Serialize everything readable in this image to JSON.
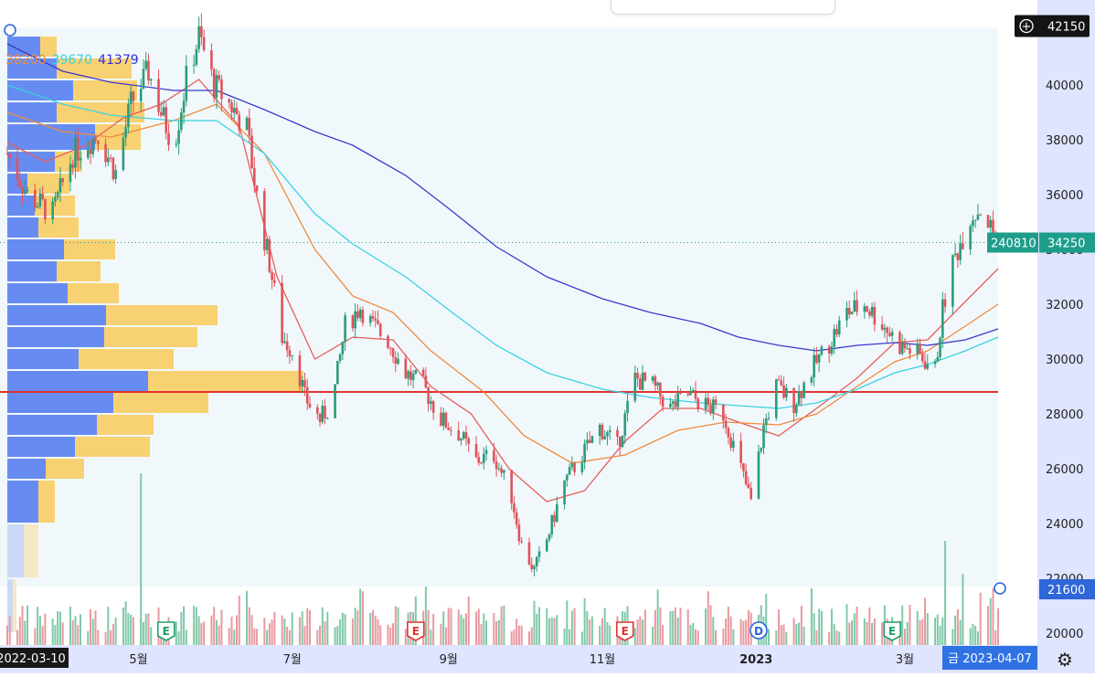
{
  "chart_data": {
    "type": "candlestick",
    "x_start": "2022-03-10",
    "x_end": "2023-04-07",
    "ylim": [
      19500,
      43000
    ],
    "y_ticks": [
      20000,
      22000,
      24000,
      26000,
      28000,
      30000,
      32000,
      34000,
      36000,
      38000,
      40000
    ],
    "y_tick_labels": [
      "20000",
      "22000",
      "24000",
      "26000",
      "28000",
      "30000",
      "32000",
      "34000",
      "36000",
      "38000",
      "40000"
    ],
    "x_tick_labels": [
      {
        "date": "2022-05-01",
        "label": "5월"
      },
      {
        "date": "2022-07-01",
        "label": "7월"
      },
      {
        "date": "2022-09-01",
        "label": "9월"
      },
      {
        "date": "2022-11-01",
        "label": "11월"
      },
      {
        "date": "2023-01-01",
        "label": "2023"
      },
      {
        "date": "2023-03-01",
        "label": "3월"
      }
    ],
    "x_start_label": "2022-03-10",
    "x_end_label": "금 2023-04-07",
    "ma_labels": [
      {
        "value": "38200",
        "color": "#f08a3c"
      },
      {
        "value": "39670",
        "color": "#38d3e0"
      },
      {
        "value": "41379",
        "color": "#2f2fd8"
      }
    ],
    "price_markers": [
      {
        "label": "42150",
        "price": 42150,
        "style": "dark"
      },
      {
        "label": "34250",
        "volume_label": "240810",
        "price": 34250,
        "style": "green"
      },
      {
        "label": "21600",
        "price": 21600,
        "style": "blue"
      }
    ],
    "horizontal_line": {
      "price": 28800,
      "color": "#e0322f"
    },
    "dotted_line": {
      "price": 34250
    },
    "last_price": 34250,
    "series": [
      {
        "name": "MA short",
        "color": "#e85d5d",
        "points": [
          [
            "2022-03-10",
            37900
          ],
          [
            "2022-03-25",
            37200
          ],
          [
            "2022-04-10",
            37800
          ],
          [
            "2022-04-25",
            38800
          ],
          [
            "2022-05-10",
            39300
          ],
          [
            "2022-05-25",
            40200
          ],
          [
            "2022-06-10",
            38500
          ],
          [
            "2022-06-25",
            33000
          ],
          [
            "2022-07-10",
            30000
          ],
          [
            "2022-07-25",
            30800
          ],
          [
            "2022-08-10",
            30700
          ],
          [
            "2022-08-25",
            29000
          ],
          [
            "2022-09-10",
            28000
          ],
          [
            "2022-09-25",
            26000
          ],
          [
            "2022-10-10",
            24800
          ],
          [
            "2022-10-25",
            25200
          ],
          [
            "2022-11-10",
            27000
          ],
          [
            "2022-11-25",
            28200
          ],
          [
            "2022-12-10",
            28200
          ],
          [
            "2022-12-25",
            27700
          ],
          [
            "2023-01-10",
            27200
          ],
          [
            "2023-01-25",
            28200
          ],
          [
            "2023-02-10",
            29300
          ],
          [
            "2023-02-25",
            30600
          ],
          [
            "2023-03-10",
            30700
          ],
          [
            "2023-03-25",
            32100
          ],
          [
            "2023-04-07",
            33300
          ]
        ]
      },
      {
        "name": "MA mid",
        "color": "#f08a3c",
        "points": [
          [
            "2022-03-10",
            39000
          ],
          [
            "2022-04-01",
            38300
          ],
          [
            "2022-04-20",
            38100
          ],
          [
            "2022-05-15",
            38700
          ],
          [
            "2022-06-01",
            39300
          ],
          [
            "2022-06-20",
            37500
          ],
          [
            "2022-07-10",
            34000
          ],
          [
            "2022-07-25",
            32300
          ],
          [
            "2022-08-10",
            31700
          ],
          [
            "2022-08-25",
            30300
          ],
          [
            "2022-09-15",
            28800
          ],
          [
            "2022-10-01",
            27200
          ],
          [
            "2022-10-20",
            26200
          ],
          [
            "2022-11-10",
            26500
          ],
          [
            "2022-12-01",
            27400
          ],
          [
            "2022-12-20",
            27700
          ],
          [
            "2023-01-10",
            27600
          ],
          [
            "2023-01-25",
            28000
          ],
          [
            "2023-02-10",
            29000
          ],
          [
            "2023-02-25",
            29900
          ],
          [
            "2023-03-10",
            30300
          ],
          [
            "2023-03-25",
            31200
          ],
          [
            "2023-04-07",
            32000
          ]
        ]
      },
      {
        "name": "MA long",
        "color": "#38d3e0",
        "points": [
          [
            "2022-03-10",
            40000
          ],
          [
            "2022-04-01",
            39300
          ],
          [
            "2022-04-20",
            38900
          ],
          [
            "2022-05-15",
            38700
          ],
          [
            "2022-06-01",
            38700
          ],
          [
            "2022-06-20",
            37500
          ],
          [
            "2022-07-10",
            35300
          ],
          [
            "2022-07-25",
            34200
          ],
          [
            "2022-08-15",
            33000
          ],
          [
            "2022-09-01",
            31800
          ],
          [
            "2022-09-20",
            30500
          ],
          [
            "2022-10-10",
            29500
          ],
          [
            "2022-11-01",
            28900
          ],
          [
            "2022-11-20",
            28600
          ],
          [
            "2022-12-10",
            28400
          ],
          [
            "2022-12-25",
            28300
          ],
          [
            "2023-01-10",
            28200
          ],
          [
            "2023-01-25",
            28400
          ],
          [
            "2023-02-10",
            28900
          ],
          [
            "2023-02-25",
            29500
          ],
          [
            "2023-03-10",
            29800
          ],
          [
            "2023-03-25",
            30300
          ],
          [
            "2023-04-07",
            30800
          ]
        ]
      },
      {
        "name": "MA very long",
        "color": "#3a3aca",
        "points": [
          [
            "2022-03-10",
            41500
          ],
          [
            "2022-04-01",
            40500
          ],
          [
            "2022-04-20",
            40100
          ],
          [
            "2022-05-15",
            39800
          ],
          [
            "2022-06-01",
            39800
          ],
          [
            "2022-06-20",
            39100
          ],
          [
            "2022-07-10",
            38300
          ],
          [
            "2022-07-25",
            37800
          ],
          [
            "2022-08-15",
            36700
          ],
          [
            "2022-09-01",
            35500
          ],
          [
            "2022-09-20",
            34100
          ],
          [
            "2022-10-10",
            33000
          ],
          [
            "2022-11-01",
            32200
          ],
          [
            "2022-11-20",
            31700
          ],
          [
            "2022-12-10",
            31300
          ],
          [
            "2022-12-25",
            30800
          ],
          [
            "2023-01-10",
            30500
          ],
          [
            "2023-01-25",
            30300
          ],
          [
            "2023-02-10",
            30500
          ],
          [
            "2023-02-25",
            30600
          ],
          [
            "2023-03-10",
            30500
          ],
          [
            "2023-03-25",
            30700
          ],
          [
            "2023-04-07",
            31100
          ]
        ]
      }
    ],
    "price_path": [
      [
        "2022-03-10",
        37500
      ],
      [
        "2022-03-18",
        36000
      ],
      [
        "2022-03-28",
        35300
      ],
      [
        "2022-04-05",
        37500
      ],
      [
        "2022-04-15",
        38200
      ],
      [
        "2022-04-22",
        36800
      ],
      [
        "2022-04-28",
        39300
      ],
      [
        "2022-05-05",
        40500
      ],
      [
        "2022-05-10",
        39000
      ],
      [
        "2022-05-15",
        37800
      ],
      [
        "2022-05-20",
        40200
      ],
      [
        "2022-05-25",
        41800
      ],
      [
        "2022-05-31",
        40000
      ],
      [
        "2022-06-07",
        39200
      ],
      [
        "2022-06-13",
        38400
      ],
      [
        "2022-06-18",
        35300
      ],
      [
        "2022-06-22",
        33500
      ],
      [
        "2022-06-27",
        30800
      ],
      [
        "2022-07-02",
        30200
      ],
      [
        "2022-07-06",
        28600
      ],
      [
        "2022-07-12",
        27800
      ],
      [
        "2022-07-17",
        28400
      ],
      [
        "2022-07-22",
        31200
      ],
      [
        "2022-07-28",
        31900
      ],
      [
        "2022-08-02",
        31200
      ],
      [
        "2022-08-08",
        30700
      ],
      [
        "2022-08-15",
        29500
      ],
      [
        "2022-08-22",
        29000
      ],
      [
        "2022-08-29",
        27800
      ],
      [
        "2022-09-05",
        27300
      ],
      [
        "2022-09-12",
        26300
      ],
      [
        "2022-09-19",
        26500
      ],
      [
        "2022-09-26",
        25000
      ],
      [
        "2022-09-30",
        23200
      ],
      [
        "2022-10-05",
        22300
      ],
      [
        "2022-10-10",
        23400
      ],
      [
        "2022-10-17",
        25500
      ],
      [
        "2022-10-24",
        26500
      ],
      [
        "2022-10-31",
        27500
      ],
      [
        "2022-11-07",
        26800
      ],
      [
        "2022-11-14",
        29300
      ],
      [
        "2022-11-21",
        29000
      ],
      [
        "2022-11-28",
        28200
      ],
      [
        "2022-12-05",
        28700
      ],
      [
        "2022-12-12",
        28300
      ],
      [
        "2022-12-19",
        28000
      ],
      [
        "2022-12-26",
        26000
      ],
      [
        "2022-12-30",
        24800
      ],
      [
        "2023-01-04",
        27500
      ],
      [
        "2023-01-09",
        29000
      ],
      [
        "2023-01-16",
        28400
      ],
      [
        "2023-01-23",
        29600
      ],
      [
        "2023-01-30",
        30600
      ],
      [
        "2023-02-06",
        31700
      ],
      [
        "2023-02-13",
        32000
      ],
      [
        "2023-02-20",
        31300
      ],
      [
        "2023-02-27",
        30500
      ],
      [
        "2023-03-06",
        30200
      ],
      [
        "2023-03-13",
        29600
      ],
      [
        "2023-03-16",
        31800
      ],
      [
        "2023-03-20",
        33500
      ],
      [
        "2023-03-27",
        35200
      ],
      [
        "2023-03-31",
        35500
      ],
      [
        "2023-04-07",
        34250
      ]
    ],
    "volume_profile": [
      {
        "from": 20000,
        "to": 22000,
        "buy": 6,
        "sell": 4
      },
      {
        "from": 22000,
        "to": 24000,
        "buy": 18,
        "sell": 16
      },
      {
        "from": 24000,
        "to": 25600,
        "buy": 34,
        "sell": 18
      },
      {
        "from": 25600,
        "to": 26400,
        "buy": 42,
        "sell": 42
      },
      {
        "from": 26400,
        "to": 27200,
        "buy": 74,
        "sell": 82
      },
      {
        "from": 27200,
        "to": 28000,
        "buy": 98,
        "sell": 62
      },
      {
        "from": 28000,
        "to": 28800,
        "buy": 116,
        "sell": 104
      },
      {
        "from": 28800,
        "to": 29600,
        "buy": 154,
        "sell": 170
      },
      {
        "from": 29600,
        "to": 30400,
        "buy": 78,
        "sell": 104
      },
      {
        "from": 30400,
        "to": 31200,
        "buy": 106,
        "sell": 102
      },
      {
        "from": 31200,
        "to": 32000,
        "buy": 108,
        "sell": 122
      },
      {
        "from": 32000,
        "to": 32800,
        "buy": 66,
        "sell": 56
      },
      {
        "from": 32800,
        "to": 33600,
        "buy": 54,
        "sell": 48
      },
      {
        "from": 33600,
        "to": 34400,
        "buy": 62,
        "sell": 56
      },
      {
        "from": 34400,
        "to": 35200,
        "buy": 34,
        "sell": 44
      },
      {
        "from": 35200,
        "to": 36000,
        "buy": 30,
        "sell": 44
      },
      {
        "from": 36000,
        "to": 36800,
        "buy": 22,
        "sell": 46
      },
      {
        "from": 36800,
        "to": 37600,
        "buy": 52,
        "sell": 30
      },
      {
        "from": 37600,
        "to": 38600,
        "buy": 96,
        "sell": 50
      },
      {
        "from": 38600,
        "to": 39400,
        "buy": 54,
        "sell": 96
      },
      {
        "from": 39400,
        "to": 40200,
        "buy": 72,
        "sell": 70
      },
      {
        "from": 40200,
        "to": 41000,
        "buy": 54,
        "sell": 82
      },
      {
        "from": 41000,
        "to": 41800,
        "buy": 36,
        "sell": 18
      }
    ],
    "event_markers": [
      {
        "date": "2022-05-12",
        "label": "E",
        "color": "#1e9e6a"
      },
      {
        "date": "2022-08-19",
        "label": "E",
        "color": "#e0322f"
      },
      {
        "date": "2022-11-10",
        "label": "E",
        "color": "#e0322f"
      },
      {
        "date": "2023-01-02",
        "label": "D",
        "color": "#2f66d8"
      },
      {
        "date": "2023-02-24",
        "label": "E",
        "color": "#1e9e6a"
      }
    ]
  }
}
